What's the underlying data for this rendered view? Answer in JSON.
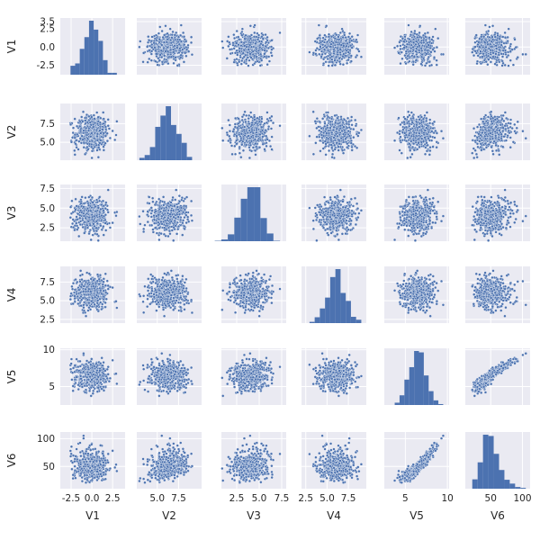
{
  "chart_data": {
    "type": "scatter",
    "kind": "pairplot",
    "variables": [
      "V1",
      "V2",
      "V3",
      "V4",
      "V5",
      "V6"
    ],
    "n_points": 500,
    "color": "#4c72b0",
    "background": "#eaeaf2",
    "grid": true,
    "legend": "none",
    "diag_kind": "histogram",
    "offdiag_kind": "scatter",
    "distributions": {
      "V1": {
        "mean": 0.0,
        "sd": 1.0
      },
      "V2": {
        "mean": 6.2,
        "sd": 1.2
      },
      "V3": {
        "mean": 4.1,
        "sd": 1.0
      },
      "V4": {
        "mean": 6.1,
        "sd": 1.1
      },
      "V5": {
        "mean": 6.5,
        "sd": 1.0
      },
      "V6": {
        "mean": 51.0,
        "sd": 15.0
      }
    },
    "correlations": {
      "V2-V6": 0.6,
      "V5-V6": 0.95
    },
    "axes": {
      "V1": {
        "range": [
          -3.8,
          4.0
        ],
        "ticks": [
          3.5,
          0.0,
          -2.5
        ],
        "tick_labels": [
          "3.5",
          "0.0",
          "-2.5"
        ],
        "x_range": [
          -3.8,
          4.0
        ],
        "x_ticks": [
          -2.5,
          0.0,
          2.5
        ],
        "x_tick_labels": [
          "-2.5",
          "0.0",
          "2.5"
        ],
        "y_ticks_full": [
          3.5,
          2.5,
          0.0,
          -2.5
        ],
        "y_tick_labels_full": [
          "3.5",
          "2.5",
          "0.0",
          "-2.5"
        ]
      },
      "V2": {
        "range": [
          2.6,
          10.2
        ],
        "ticks": [
          7.5,
          5.0
        ],
        "tick_labels": [
          "7.5",
          "5.0"
        ]
      },
      "V3": {
        "range": [
          0.8,
          8.0
        ],
        "ticks": [
          7.5,
          5.0,
          2.5
        ],
        "tick_labels": [
          "7.5",
          "5.0",
          "2.5"
        ],
        "x_ticks": [
          2.5,
          5.0,
          7.5
        ],
        "x_tick_labels": [
          "2.5",
          "5.0",
          "7.5"
        ]
      },
      "V4": {
        "range": [
          2.0,
          9.6
        ],
        "ticks": [
          7.5,
          5.0,
          2.5
        ],
        "tick_labels": [
          "7.5",
          "5.0",
          "2.5"
        ],
        "x_ticks": [
          2.5,
          5.0,
          7.5
        ],
        "x_tick_labels": [
          "2.5",
          "5.0",
          "7.5"
        ]
      },
      "V5": {
        "range": [
          2.5,
          10.2
        ],
        "ticks": [
          10,
          5
        ],
        "tick_labels": [
          "10",
          "5"
        ],
        "x_ticks": [
          5,
          10
        ],
        "x_tick_labels": [
          "5",
          "10"
        ]
      },
      "V6": {
        "range": [
          10,
          112
        ],
        "ticks": [
          100,
          50
        ],
        "tick_labels": [
          "100",
          "50"
        ],
        "x_ticks": [
          50,
          100
        ],
        "x_tick_labels": [
          "50",
          "100"
        ]
      }
    }
  }
}
